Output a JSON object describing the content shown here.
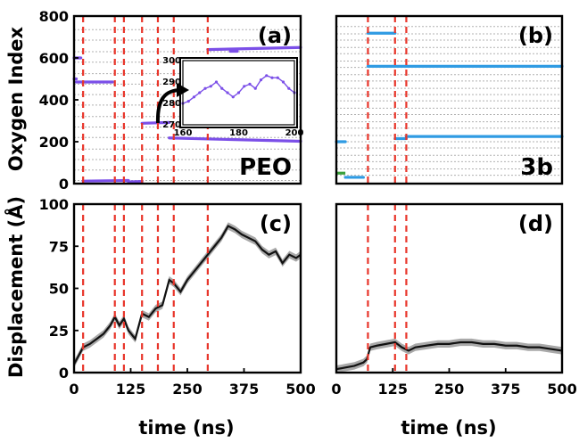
{
  "figure": {
    "xlabel_left": "time (ns)",
    "xlabel_right": "time (ns)",
    "ylabel_top": "Oxygen Index",
    "ylabel_bottom": "Displacement (Å)"
  },
  "colors": {
    "event_line": "#e8352a",
    "peo_series": "#7b4fe8",
    "b3_series": "#2f9be3",
    "b3_green": "#3aa03a",
    "displacement_line": "#111111",
    "displacement_band": "#a9a9a9",
    "grid": "#b0b0b0"
  },
  "chart_data": [
    {
      "id": "a",
      "type": "scatter",
      "panel_label": "(a)",
      "corner_text": "PEO",
      "xlim": [
        0,
        500
      ],
      "ylim": [
        0,
        800
      ],
      "xticks": [],
      "yticks": [
        "0",
        "200",
        "400",
        "600",
        "800"
      ],
      "ytick_values": [
        0,
        200,
        400,
        600,
        800
      ],
      "gridlines_y": [
        15,
        65,
        115,
        165,
        220,
        270,
        320,
        375,
        425,
        475,
        525,
        580,
        630,
        685,
        735
      ],
      "event_lines_x": [
        20,
        90,
        110,
        150,
        185,
        220,
        295
      ],
      "series": [
        {
          "x": [
            0,
            15
          ],
          "y": [
            600,
            600
          ]
        },
        {
          "x": [
            0,
            5
          ],
          "y": [
            500,
            500
          ]
        },
        {
          "x": [
            5,
            85
          ],
          "y": [
            485,
            485
          ]
        },
        {
          "x": [
            20,
            120
          ],
          "y": [
            12,
            15
          ]
        },
        {
          "x": [
            120,
            150
          ],
          "y": [
            8,
            10
          ]
        },
        {
          "x": [
            150,
            210
          ],
          "y": [
            288,
            292
          ]
        },
        {
          "x": [
            210,
            500
          ],
          "y": [
            218,
            202
          ]
        },
        {
          "x": [
            295,
            500
          ],
          "y": [
            640,
            650
          ]
        },
        {
          "x": [
            345,
            360
          ],
          "y": [
            632,
            632
          ]
        },
        {
          "x": [
            240,
            250
          ],
          "y": [
            580,
            580
          ]
        }
      ],
      "inset": {
        "xlim": [
          160,
          200
        ],
        "ylim": [
          270,
          300
        ],
        "xticks": [
          "160",
          "180",
          "200"
        ],
        "xtick_values": [
          160,
          180,
          200
        ],
        "yticks": [
          "270",
          "280",
          "290",
          "300"
        ],
        "ytick_values": [
          270,
          280,
          290,
          300
        ],
        "x": [
          160,
          162,
          164,
          166,
          168,
          170,
          172,
          174,
          176,
          178,
          180,
          182,
          184,
          186,
          188,
          190,
          192,
          194,
          196,
          198,
          200
        ],
        "y": [
          280,
          281,
          283,
          285,
          287,
          288,
          290,
          287,
          285,
          283,
          285,
          288,
          289,
          287,
          291,
          293,
          292,
          292,
          290,
          287,
          285
        ]
      }
    },
    {
      "id": "b",
      "type": "scatter",
      "panel_label": "(b)",
      "corner_text": "3b",
      "xlim": [
        0,
        500
      ],
      "ylim": [
        0,
        800
      ],
      "xticks": [],
      "yticks": [],
      "gridlines_y": [
        40,
        70,
        105,
        135,
        170,
        200,
        230,
        265,
        295,
        330,
        360,
        395,
        425,
        455,
        490,
        520,
        555,
        585,
        620,
        650,
        685,
        715,
        750
      ],
      "event_lines_x": [
        70,
        130,
        155
      ],
      "series": [
        {
          "x": [
            0,
            20
          ],
          "y": [
            200,
            200
          ]
        },
        {
          "x": [
            20,
            60
          ],
          "y": [
            30,
            30
          ]
        },
        {
          "x": [
            70,
            130
          ],
          "y": [
            718,
            718
          ]
        },
        {
          "x": [
            70,
            500
          ],
          "y": [
            560,
            560
          ]
        },
        {
          "x": [
            155,
            500
          ],
          "y": [
            225,
            225
          ]
        },
        {
          "x": [
            130,
            155
          ],
          "y": [
            215,
            215
          ]
        }
      ],
      "green_series": {
        "x": [
          0,
          20
        ],
        "y": [
          50,
          50
        ]
      }
    },
    {
      "id": "c",
      "type": "line",
      "panel_label": "(c)",
      "xlim": [
        0,
        500
      ],
      "ylim": [
        0,
        100
      ],
      "xticks": [
        "0",
        "125",
        "250",
        "375",
        "500"
      ],
      "xtick_values": [
        0,
        125,
        250,
        375,
        500
      ],
      "yticks": [
        "0",
        "25",
        "50",
        "75",
        "100"
      ],
      "ytick_values": [
        0,
        25,
        50,
        75,
        100
      ],
      "event_lines_x": [
        20,
        90,
        110,
        150,
        185,
        220,
        295
      ],
      "x": [
        0,
        10,
        20,
        35,
        50,
        65,
        80,
        90,
        100,
        110,
        120,
        135,
        150,
        165,
        180,
        195,
        210,
        220,
        235,
        250,
        265,
        280,
        295,
        310,
        325,
        340,
        355,
        370,
        385,
        400,
        415,
        430,
        445,
        460,
        475,
        490,
        500
      ],
      "y": [
        5,
        10,
        15,
        17,
        20,
        23,
        28,
        33,
        28,
        32,
        25,
        20,
        35,
        33,
        38,
        40,
        55,
        53,
        48,
        55,
        60,
        65,
        70,
        75,
        80,
        87,
        85,
        82,
        80,
        78,
        73,
        70,
        72,
        65,
        70,
        68,
        70
      ]
    },
    {
      "id": "d",
      "type": "line",
      "panel_label": "(d)",
      "xlim": [
        0,
        500
      ],
      "ylim": [
        0,
        100
      ],
      "xticks": [
        "0",
        "125",
        "250",
        "375",
        "500"
      ],
      "xtick_values": [
        0,
        125,
        250,
        375,
        500
      ],
      "yticks": [],
      "event_lines_x": [
        70,
        130,
        155
      ],
      "x": [
        0,
        20,
        40,
        60,
        68,
        75,
        90,
        110,
        130,
        145,
        160,
        175,
        200,
        225,
        250,
        275,
        300,
        325,
        350,
        375,
        400,
        425,
        450,
        475,
        500
      ],
      "y": [
        2,
        3,
        4,
        6,
        8,
        15,
        16,
        17,
        18,
        15,
        13,
        15,
        16,
        17,
        17,
        18,
        18,
        17,
        17,
        16,
        16,
        15,
        15,
        14,
        13
      ]
    }
  ]
}
